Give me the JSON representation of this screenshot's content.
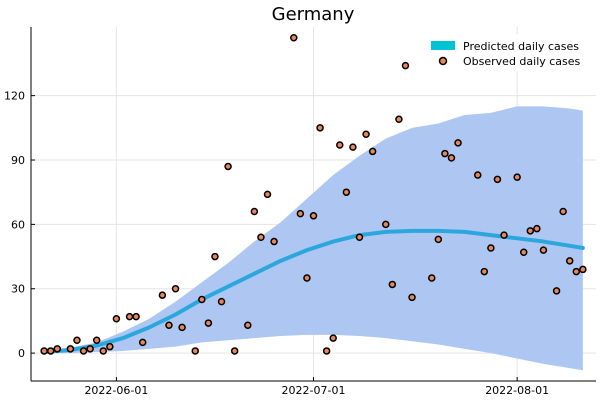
{
  "chart_data": {
    "type": "line",
    "title": "Germany",
    "xlabel": "",
    "ylabel": "",
    "x_axis": {
      "type": "date",
      "range": [
        "2022-05-19",
        "2022-08-13"
      ],
      "ticks": [
        "2022-06-01",
        "2022-07-01",
        "2022-08-01"
      ]
    },
    "y_axis": {
      "range": [
        -13,
        152
      ],
      "ticks": [
        0,
        30,
        60,
        90,
        120
      ]
    },
    "grid": true,
    "legend_position": "top-right",
    "colors": {
      "band": "#aec7f2",
      "prediction": "#2ca7dd",
      "legend_prediction": "#00c4d4",
      "observed_fill": "#e8865c",
      "observed_stroke": "#000000"
    },
    "series": [
      {
        "name": "Predicted daily cases",
        "kind": "line",
        "points": [
          [
            "2022-05-21",
            0.5
          ],
          [
            "2022-05-25",
            1.5
          ],
          [
            "2022-05-29",
            3.5
          ],
          [
            "2022-06-02",
            7
          ],
          [
            "2022-06-06",
            12
          ],
          [
            "2022-06-10",
            18
          ],
          [
            "2022-06-14",
            25
          ],
          [
            "2022-06-18",
            31
          ],
          [
            "2022-06-22",
            37
          ],
          [
            "2022-06-26",
            43
          ],
          [
            "2022-06-30",
            48
          ],
          [
            "2022-07-04",
            52
          ],
          [
            "2022-07-08",
            55
          ],
          [
            "2022-07-12",
            56.5
          ],
          [
            "2022-07-16",
            57
          ],
          [
            "2022-07-20",
            57
          ],
          [
            "2022-07-24",
            56.5
          ],
          [
            "2022-07-28",
            55
          ],
          [
            "2022-08-01",
            53.5
          ],
          [
            "2022-08-05",
            52
          ],
          [
            "2022-08-09",
            50
          ],
          [
            "2022-08-11",
            49
          ]
        ],
        "band_upper": [
          [
            "2022-05-21",
            1
          ],
          [
            "2022-05-25",
            2.5
          ],
          [
            "2022-05-29",
            5
          ],
          [
            "2022-06-02",
            10
          ],
          [
            "2022-06-06",
            16
          ],
          [
            "2022-06-10",
            24
          ],
          [
            "2022-06-14",
            33
          ],
          [
            "2022-06-18",
            42
          ],
          [
            "2022-06-22",
            52
          ],
          [
            "2022-06-26",
            61
          ],
          [
            "2022-06-30",
            72
          ],
          [
            "2022-07-04",
            83
          ],
          [
            "2022-07-08",
            92
          ],
          [
            "2022-07-12",
            100
          ],
          [
            "2022-07-16",
            105
          ],
          [
            "2022-07-20",
            107
          ],
          [
            "2022-07-24",
            111
          ],
          [
            "2022-07-28",
            112
          ],
          [
            "2022-08-01",
            115
          ],
          [
            "2022-08-05",
            115
          ],
          [
            "2022-08-09",
            114
          ],
          [
            "2022-08-11",
            113
          ]
        ],
        "band_lower": [
          [
            "2022-05-21",
            0
          ],
          [
            "2022-05-25",
            0
          ],
          [
            "2022-05-29",
            0.5
          ],
          [
            "2022-06-02",
            1
          ],
          [
            "2022-06-06",
            2
          ],
          [
            "2022-06-10",
            3
          ],
          [
            "2022-06-14",
            5
          ],
          [
            "2022-06-18",
            6
          ],
          [
            "2022-06-22",
            7
          ],
          [
            "2022-06-26",
            8
          ],
          [
            "2022-06-30",
            8.5
          ],
          [
            "2022-07-04",
            8.5
          ],
          [
            "2022-07-08",
            8
          ],
          [
            "2022-07-12",
            7
          ],
          [
            "2022-07-16",
            5.5
          ],
          [
            "2022-07-20",
            4
          ],
          [
            "2022-07-24",
            2
          ],
          [
            "2022-07-28",
            0
          ],
          [
            "2022-08-01",
            -2.5
          ],
          [
            "2022-08-05",
            -5
          ],
          [
            "2022-08-09",
            -7
          ],
          [
            "2022-08-11",
            -8
          ]
        ]
      },
      {
        "name": "Observed daily cases",
        "kind": "scatter",
        "points": [
          [
            "2022-05-21",
            1
          ],
          [
            "2022-05-22",
            1
          ],
          [
            "2022-05-23",
            2
          ],
          [
            "2022-05-25",
            2
          ],
          [
            "2022-05-26",
            6
          ],
          [
            "2022-05-27",
            1
          ],
          [
            "2022-05-28",
            2
          ],
          [
            "2022-05-29",
            6
          ],
          [
            "2022-05-30",
            1
          ],
          [
            "2022-05-31",
            3
          ],
          [
            "2022-06-01",
            16
          ],
          [
            "2022-06-03",
            17
          ],
          [
            "2022-06-04",
            17
          ],
          [
            "2022-06-05",
            5
          ],
          [
            "2022-06-08",
            27
          ],
          [
            "2022-06-09",
            13
          ],
          [
            "2022-06-10",
            30
          ],
          [
            "2022-06-11",
            12
          ],
          [
            "2022-06-13",
            1
          ],
          [
            "2022-06-14",
            25
          ],
          [
            "2022-06-15",
            14
          ],
          [
            "2022-06-16",
            45
          ],
          [
            "2022-06-17",
            24
          ],
          [
            "2022-06-18",
            87
          ],
          [
            "2022-06-19",
            1
          ],
          [
            "2022-06-21",
            13
          ],
          [
            "2022-06-22",
            66
          ],
          [
            "2022-06-23",
            54
          ],
          [
            "2022-06-24",
            74
          ],
          [
            "2022-06-25",
            52
          ],
          [
            "2022-06-28",
            147
          ],
          [
            "2022-06-29",
            65
          ],
          [
            "2022-06-30",
            35
          ],
          [
            "2022-07-01",
            64
          ],
          [
            "2022-07-02",
            105
          ],
          [
            "2022-07-03",
            1
          ],
          [
            "2022-07-04",
            7
          ],
          [
            "2022-07-05",
            97
          ],
          [
            "2022-07-06",
            75
          ],
          [
            "2022-07-07",
            96
          ],
          [
            "2022-07-08",
            54
          ],
          [
            "2022-07-09",
            102
          ],
          [
            "2022-07-10",
            94
          ],
          [
            "2022-07-12",
            60
          ],
          [
            "2022-07-13",
            32
          ],
          [
            "2022-07-14",
            109
          ],
          [
            "2022-07-15",
            134
          ],
          [
            "2022-07-16",
            26
          ],
          [
            "2022-07-19",
            35
          ],
          [
            "2022-07-20",
            53
          ],
          [
            "2022-07-21",
            93
          ],
          [
            "2022-07-22",
            91
          ],
          [
            "2022-07-23",
            98
          ],
          [
            "2022-07-26",
            83
          ],
          [
            "2022-07-27",
            38
          ],
          [
            "2022-07-28",
            49
          ],
          [
            "2022-07-29",
            81
          ],
          [
            "2022-07-30",
            55
          ],
          [
            "2022-08-01",
            82
          ],
          [
            "2022-08-02",
            47
          ],
          [
            "2022-08-03",
            57
          ],
          [
            "2022-08-04",
            58
          ],
          [
            "2022-08-05",
            48
          ],
          [
            "2022-08-07",
            29
          ],
          [
            "2022-08-08",
            66
          ],
          [
            "2022-08-09",
            43
          ],
          [
            "2022-08-10",
            38
          ],
          [
            "2022-08-11",
            39
          ]
        ]
      }
    ]
  }
}
